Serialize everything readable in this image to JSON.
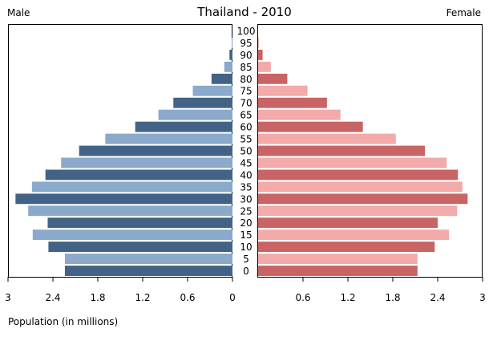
{
  "chart_data": {
    "type": "bar",
    "title": "Thailand - 2010",
    "left_label": "Male",
    "right_label": "Female",
    "xlabel": "Population (in millions)",
    "xlim": [
      0,
      3
    ],
    "x_ticks": [
      "3",
      "2.4",
      "1.8",
      "1.2",
      "0.6",
      "0",
      "0.6",
      "1.2",
      "1.8",
      "2.4",
      "3"
    ],
    "x_tick_values": [
      3,
      2.4,
      1.8,
      1.2,
      0.6,
      0,
      0.6,
      1.2,
      1.8,
      2.4,
      3
    ],
    "categories": [
      "0",
      "5",
      "10",
      "15",
      "20",
      "25",
      "30",
      "35",
      "40",
      "45",
      "50",
      "55",
      "60",
      "65",
      "70",
      "75",
      "80",
      "85",
      "90",
      "95",
      "100"
    ],
    "series": [
      {
        "name": "Male",
        "values": [
          2.24,
          2.24,
          2.46,
          2.67,
          2.47,
          2.73,
          2.9,
          2.68,
          2.5,
          2.29,
          2.05,
          1.7,
          1.3,
          0.99,
          0.79,
          0.53,
          0.28,
          0.11,
          0.04,
          0.01,
          0.0
        ],
        "colors": [
          "#426385",
          "#8aa9cb"
        ]
      },
      {
        "name": "Female",
        "values": [
          2.13,
          2.13,
          2.36,
          2.55,
          2.4,
          2.66,
          2.8,
          2.73,
          2.67,
          2.52,
          2.23,
          1.84,
          1.4,
          1.1,
          0.92,
          0.66,
          0.39,
          0.17,
          0.06,
          0.01,
          0.0
        ],
        "colors": [
          "#c96464",
          "#f2aaaa"
        ]
      }
    ],
    "grid": false
  }
}
